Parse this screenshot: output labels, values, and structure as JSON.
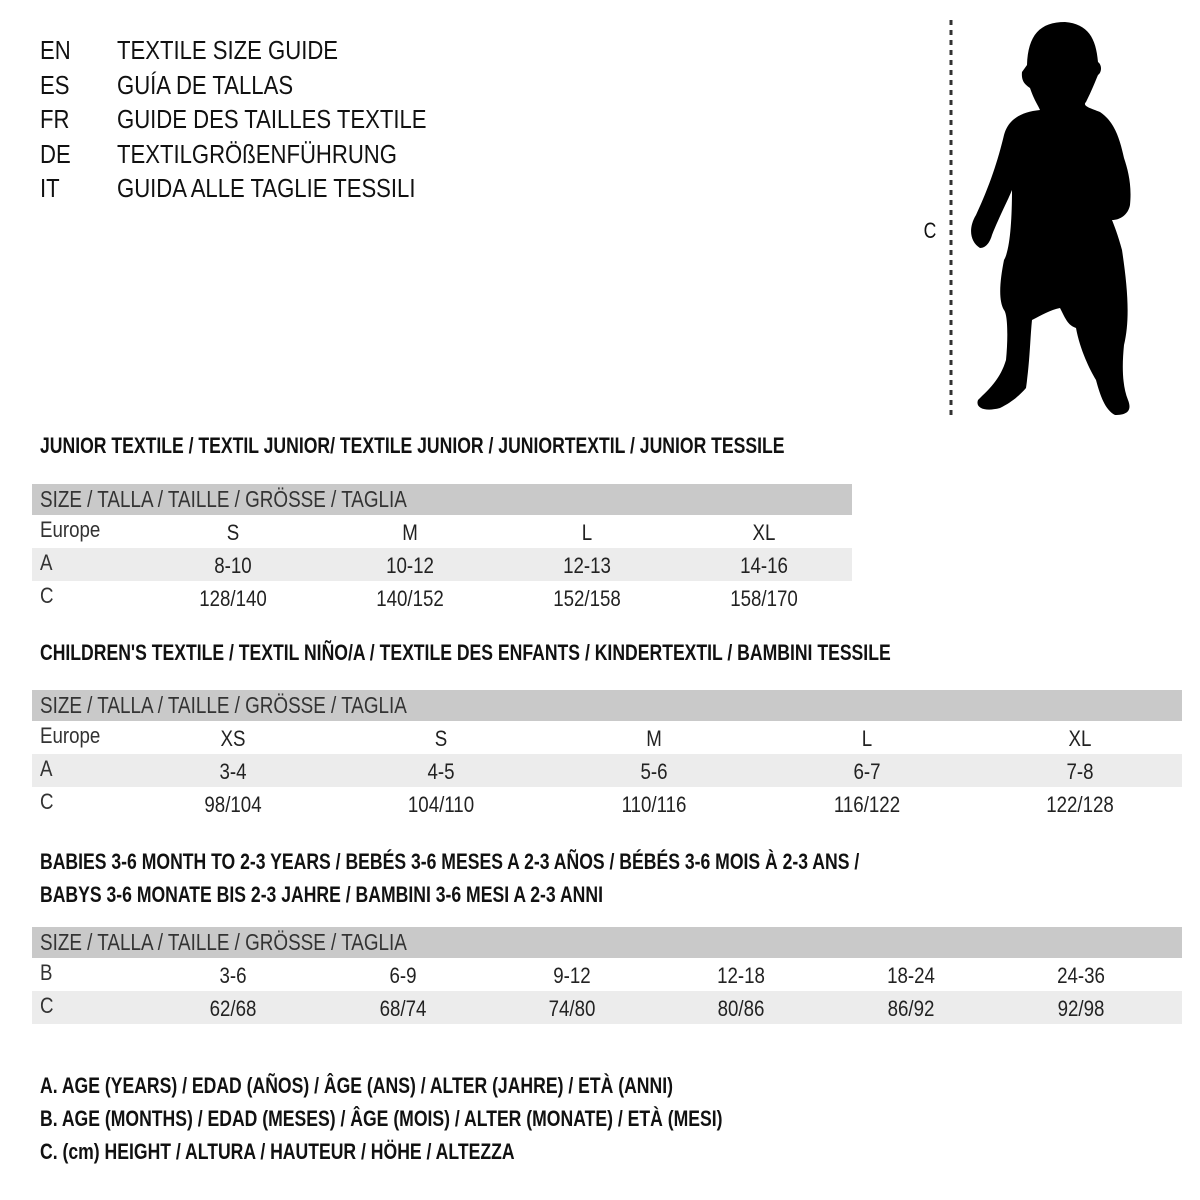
{
  "languages": [
    {
      "code": "EN",
      "title": "TEXTILE SIZE GUIDE"
    },
    {
      "code": "ES",
      "title": "GUÍA DE TALLAS"
    },
    {
      "code": "FR",
      "title": "GUIDE DES TAILLES TEXTILE"
    },
    {
      "code": "DE",
      "title": "TEXTILGRÖßENFÜHRUNG"
    },
    {
      "code": "IT",
      "title": "GUIDA ALLE TAGLIE TESSILI"
    }
  ],
  "figure": {
    "height_label": "C",
    "icon": "child-silhouette"
  },
  "sections": [
    {
      "heading": [
        "JUNIOR TEXTILE / TEXTIL JUNIOR/ TEXTILE JUNIOR / JUNIORTEXTIL / JUNIOR TESSILE"
      ],
      "header": "SIZE / TALLA / TAILLE / GRÖSSE / TAGLIA",
      "rows": [
        {
          "label": "Europe",
          "values": [
            "S",
            "M",
            "L",
            "XL"
          ]
        },
        {
          "label": "A",
          "values": [
            "8-10",
            "10-12",
            "12-13",
            "14-16"
          ]
        },
        {
          "label": "C",
          "values": [
            "128/140",
            "140/152",
            "152/158",
            "158/170"
          ]
        }
      ]
    },
    {
      "heading": [
        "CHILDREN'S TEXTILE / TEXTIL NIÑO/A / TEXTILE DES ENFANTS / KINDERTEXTIL / BAMBINI TESSILE"
      ],
      "header": "SIZE / TALLA / TAILLE / GRÖSSE / TAGLIA",
      "rows": [
        {
          "label": "Europe",
          "values": [
            "XS",
            "S",
            "M",
            "L",
            "XL"
          ]
        },
        {
          "label": "A",
          "values": [
            "3-4",
            "4-5",
            "5-6",
            "6-7",
            "7-8"
          ]
        },
        {
          "label": "C",
          "values": [
            "98/104",
            "104/110",
            "110/116",
            "116/122",
            "122/128"
          ]
        }
      ]
    },
    {
      "heading": [
        "BABIES 3-6 MONTH TO 2-3 YEARS / BEBÉS 3-6 MESES A 2-3 AÑOS / BÉBÉS 3-6 MOIS À 2-3 ANS /",
        "BABYS 3-6 MONATE BIS 2-3 JAHRE / BAMBINI 3-6 MESI A 2-3 ANNI"
      ],
      "header": "SIZE / TALLA / TAILLE / GRÖSSE / TAGLIA",
      "rows": [
        {
          "label": "B",
          "values": [
            "3-6",
            "6-9",
            "9-12",
            "12-18",
            "18-24",
            "24-36"
          ]
        },
        {
          "label": "C",
          "values": [
            "62/68",
            "68/74",
            "74/80",
            "80/86",
            "86/92",
            "92/98"
          ]
        }
      ]
    }
  ],
  "legend": [
    "A. AGE (YEARS) / EDAD (AÑOS) / ÂGE (ANS) / ALTER (JAHRE) / ETÀ (ANNI)",
    "B. AGE (MONTHS) / EDAD (MESES) / ÂGE (MOIS) / ALTER (MONATE) / ETÀ (MESI)",
    "C. (cm) HEIGHT / ALTURA / HAUTEUR / HÖHE / ALTEZZA"
  ],
  "colors": {
    "header_bg": "#c9c9c9",
    "alt_row_bg": "#ececec",
    "text": "#111111"
  }
}
